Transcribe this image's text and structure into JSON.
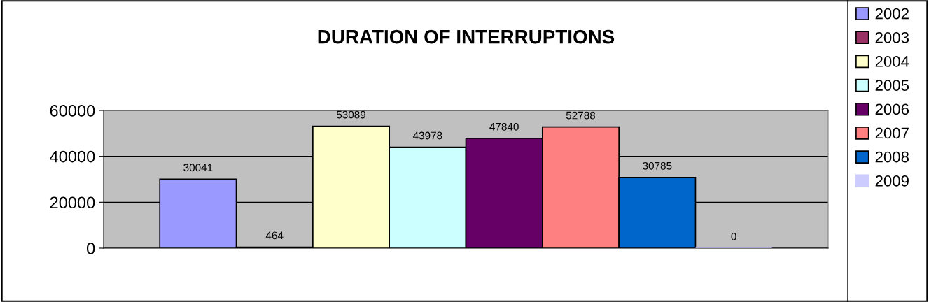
{
  "chart_data": {
    "type": "bar",
    "title": "DURATION OF INTERRUPTIONS",
    "categories": [
      null
    ],
    "series": [
      {
        "name": "2002",
        "color": "#9999ff",
        "values": [
          30041
        ]
      },
      {
        "name": "2003",
        "color": "#993366",
        "values": [
          464
        ]
      },
      {
        "name": "2004",
        "color": "#ffffcc",
        "values": [
          53089
        ]
      },
      {
        "name": "2005",
        "color": "#ccffff",
        "values": [
          43978
        ]
      },
      {
        "name": "2006",
        "color": "#660066",
        "values": [
          47840
        ]
      },
      {
        "name": "2007",
        "color": "#ff8080",
        "values": [
          52788
        ]
      },
      {
        "name": "2008",
        "color": "#0066cc",
        "values": [
          30785
        ]
      },
      {
        "name": "2009",
        "color": "#ccccff",
        "values": [
          0
        ]
      }
    ],
    "ylim": [
      0,
      60000
    ],
    "yticks": [
      0,
      20000,
      40000,
      60000
    ],
    "grid": "y",
    "legend": "right",
    "data_labels": true
  }
}
